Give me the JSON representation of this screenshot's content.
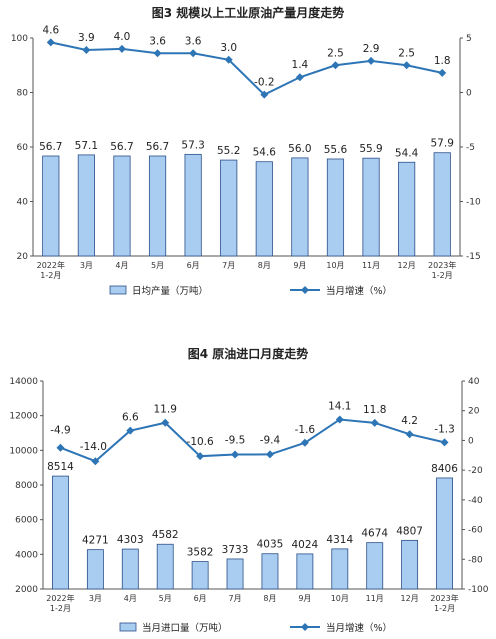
{
  "colors": {
    "bar_fill": "#a9cdf0",
    "bar_stroke": "#2a4f8a",
    "line": "#2e75b6",
    "axis": "#555555"
  },
  "chart_data": [
    {
      "type": "bar",
      "title": "图3  规模以上工业原油产量月度走势",
      "categories": [
        "2022年\n1-2月",
        "3月",
        "4月",
        "5月",
        "6月",
        "7月",
        "8月",
        "9月",
        "10月",
        "11月",
        "12月",
        "2023年\n1-2月"
      ],
      "series": [
        {
          "name": "日均产量（万吨）",
          "type": "bar",
          "axis": "left",
          "values": [
            56.7,
            57.1,
            56.7,
            56.7,
            57.3,
            55.2,
            54.6,
            56.0,
            55.6,
            55.9,
            54.4,
            57.9
          ]
        },
        {
          "name": "当月增速（%）",
          "type": "line",
          "axis": "right",
          "values": [
            4.6,
            3.9,
            4.0,
            3.6,
            3.6,
            3.0,
            -0.2,
            1.4,
            2.5,
            2.9,
            2.5,
            1.8
          ]
        }
      ],
      "bar_labels": [
        "56.7",
        "57.1",
        "56.7",
        "56.7",
        "57.3",
        "55.2",
        "54.6",
        "56.0",
        "55.6",
        "55.9",
        "54.4",
        "57.9"
      ],
      "line_labels": [
        "4.6",
        "3.9",
        "4.0",
        "3.6",
        "3.6",
        "3.0",
        "-0.2",
        "1.4",
        "2.5",
        "2.9",
        "2.5",
        "1.8"
      ],
      "ylim_left": [
        20,
        100
      ],
      "yticks_left": [
        "20",
        "40",
        "60",
        "80",
        "100"
      ],
      "ylim_right": [
        -15,
        5
      ],
      "yticks_right": [
        "-15",
        "-10",
        "-5",
        "0",
        "5"
      ],
      "grid": false,
      "legend_position": "bottom"
    },
    {
      "type": "bar",
      "title": "图4  原油进口月度走势",
      "categories": [
        "2022年\n1-2月",
        "3月",
        "4月",
        "5月",
        "6月",
        "7月",
        "8月",
        "9月",
        "10月",
        "11月",
        "12月",
        "2023年\n1-2月"
      ],
      "series": [
        {
          "name": "当月进口量（万吨）",
          "type": "bar",
          "axis": "left",
          "values": [
            8514,
            4271,
            4303,
            4582,
            3582,
            3733,
            4035,
            4024,
            4314,
            4674,
            4807,
            8406
          ]
        },
        {
          "name": "当月增速（%）",
          "type": "line",
          "axis": "right",
          "values": [
            -4.9,
            -14.0,
            6.6,
            11.9,
            -10.6,
            -9.5,
            -9.4,
            -1.6,
            14.1,
            11.8,
            4.2,
            -1.3
          ]
        }
      ],
      "bar_labels": [
        "8514",
        "4271",
        "4303",
        "4582",
        "3582",
        "3733",
        "4035",
        "4024",
        "4314",
        "4674",
        "4807",
        "8406"
      ],
      "line_labels": [
        "-4.9",
        "-14.0",
        "6.6",
        "11.9",
        "-10.6",
        "-9.5",
        "-9.4",
        "-1.6",
        "14.1",
        "11.8",
        "4.2",
        "-1.3"
      ],
      "ylim_left": [
        2000,
        14000
      ],
      "yticks_left": [
        "2000",
        "4000",
        "6000",
        "8000",
        "10000",
        "12000",
        "14000"
      ],
      "ylim_right": [
        -100,
        40
      ],
      "yticks_right": [
        "-100",
        "-80",
        "-60",
        "-40",
        "-20",
        "0",
        "20",
        "40"
      ],
      "grid": false,
      "legend_position": "bottom"
    }
  ]
}
